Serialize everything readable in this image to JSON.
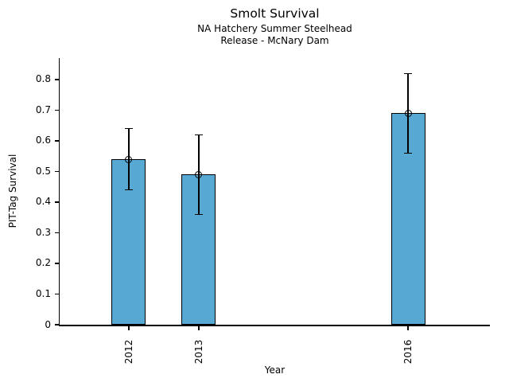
{
  "chart_data": {
    "type": "bar",
    "title": "Smolt Survival",
    "subtitle": [
      "NA Hatchery Summer Steelhead",
      "Release - McNary Dam"
    ],
    "xlabel": "Year",
    "ylabel": "PIT-Tag Survival",
    "categories": [
      "2012",
      "2013",
      "2016"
    ],
    "x": [
      2012,
      2013,
      2016
    ],
    "values": [
      0.54,
      0.49,
      0.69
    ],
    "error_low": [
      0.44,
      0.36,
      0.56
    ],
    "error_high": [
      0.64,
      0.62,
      0.82
    ],
    "yticks": [
      0,
      0.1,
      0.2,
      0.3,
      0.4,
      0.5,
      0.6,
      0.7,
      0.8
    ],
    "ytick_labels": [
      "0",
      "0.1",
      "0.2",
      "0.3",
      "0.4",
      "0.5",
      "0.6",
      "0.7",
      "0.8"
    ],
    "xlim": [
      2011.01,
      2017.17
    ],
    "ylim": [
      0,
      0.87
    ],
    "grid": false,
    "legend": false,
    "background_color": "#ffffff",
    "bar_color": "#58A8D4",
    "bar_edge_color": "#000000",
    "errorbar_color": "#000000",
    "marker": "open-circle",
    "text_color": "#000000"
  }
}
